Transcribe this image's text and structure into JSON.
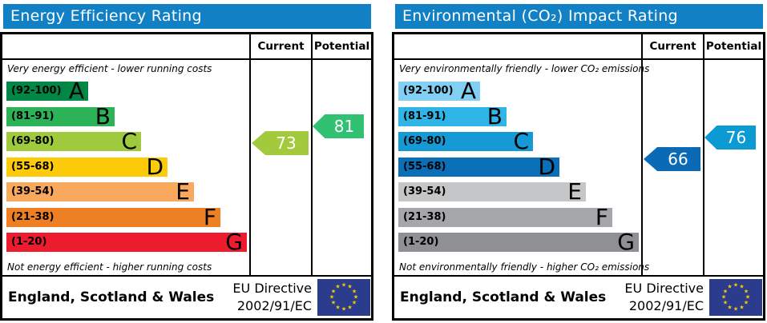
{
  "header_labels": {
    "current": "Current",
    "potential": "Potential"
  },
  "footer": {
    "region": "England, Scotland & Wales",
    "directive_line1": "EU Directive",
    "directive_line2": "2002/91/EC",
    "flag": {
      "bg": "#2b3c8d",
      "star_color": "#ffcc00"
    }
  },
  "charts": [
    {
      "title": "Energy Efficiency Rating",
      "title_bg": "#1180c5",
      "top_caption": "Very energy efficient - lower running costs",
      "bottom_caption": "Not energy efficient - higher running costs",
      "bands": [
        {
          "range": "(92-100)",
          "letter": "A",
          "color": "#008746"
        },
        {
          "range": "(81-91)",
          "letter": "B",
          "color": "#2cb358"
        },
        {
          "range": "(69-80)",
          "letter": "C",
          "color": "#9fca3d"
        },
        {
          "range": "(55-68)",
          "letter": "D",
          "color": "#fecb0b"
        },
        {
          "range": "(39-54)",
          "letter": "E",
          "color": "#f9a95e"
        },
        {
          "range": "(21-38)",
          "letter": "F",
          "color": "#ef7f23"
        },
        {
          "range": "(1-20)",
          "letter": "G",
          "color": "#ec1c2e"
        }
      ],
      "current": {
        "value": "73",
        "color": "#a3c93d",
        "band": "C"
      },
      "potential": {
        "value": "81",
        "color": "#30c173",
        "band": "B"
      }
    },
    {
      "title": "Environmental (CO₂) Impact Rating",
      "title_bg": "#1180c5",
      "top_caption": "Very environmentally friendly - lower CO₂ emissions",
      "bottom_caption": "Not environmentally friendly - higher CO₂ emissions",
      "bands": [
        {
          "range": "(92-100)",
          "letter": "A",
          "color": "#81cff4"
        },
        {
          "range": "(81-91)",
          "letter": "B",
          "color": "#30b5e9"
        },
        {
          "range": "(69-80)",
          "letter": "C",
          "color": "#169ad5"
        },
        {
          "range": "(55-68)",
          "letter": "D",
          "color": "#0b6fb7"
        },
        {
          "range": "(39-54)",
          "letter": "E",
          "color": "#c5c6c8"
        },
        {
          "range": "(21-38)",
          "letter": "F",
          "color": "#a4a6a9"
        },
        {
          "range": "(1-20)",
          "letter": "G",
          "color": "#8e9093"
        }
      ],
      "current": {
        "value": "66",
        "color": "#0b6ab5",
        "band": "D"
      },
      "potential": {
        "value": "76",
        "color": "#0c9ad2",
        "band": "C"
      }
    }
  ],
  "chart_data": [
    {
      "type": "bar",
      "title": "Energy Efficiency Rating",
      "categories": [
        "A (92-100)",
        "B (81-91)",
        "C (69-80)",
        "D (55-68)",
        "E (39-54)",
        "F (21-38)",
        "G (1-20)"
      ],
      "scale_min": 1,
      "scale_max": 100,
      "current": 73,
      "current_band": "C",
      "potential": 81,
      "potential_band": "B",
      "top_caption": "Very energy efficient - lower running costs",
      "bottom_caption": "Not energy efficient - higher running costs",
      "footer": "England, Scotland & Wales — EU Directive 2002/91/EC"
    },
    {
      "type": "bar",
      "title": "Environmental (CO₂) Impact Rating",
      "categories": [
        "A (92-100)",
        "B (81-91)",
        "C (69-80)",
        "D (55-68)",
        "E (39-54)",
        "F (21-38)",
        "G (1-20)"
      ],
      "scale_min": 1,
      "scale_max": 100,
      "current": 66,
      "current_band": "D",
      "potential": 76,
      "potential_band": "C",
      "top_caption": "Very environmentally friendly - lower CO₂ emissions",
      "bottom_caption": "Not environmentally friendly - higher CO₂ emissions",
      "footer": "England, Scotland & Wales — EU Directive 2002/91/EC"
    }
  ]
}
